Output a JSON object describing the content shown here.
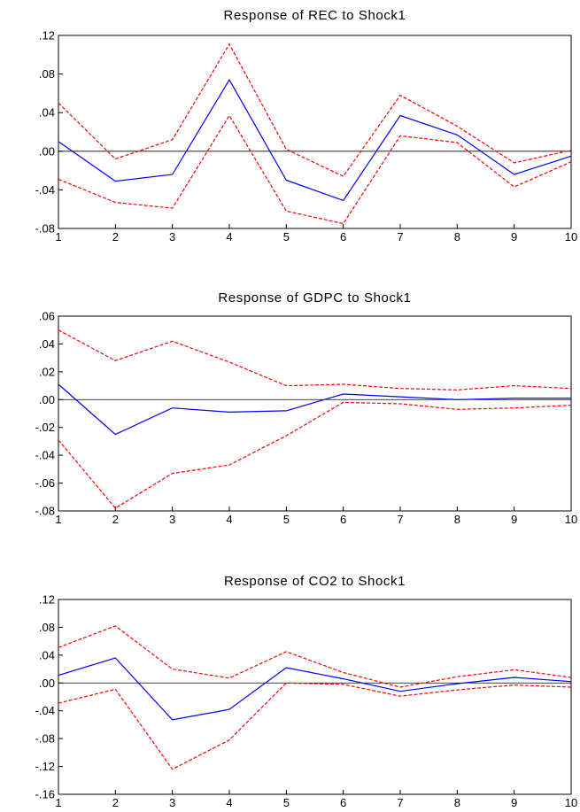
{
  "chart_data": [
    {
      "type": "line",
      "title": "Response of REC to Shock1",
      "x": [
        1,
        2,
        3,
        4,
        5,
        6,
        7,
        8,
        9,
        10
      ],
      "xlim": [
        1,
        10
      ],
      "ylim": [
        -0.08,
        0.12
      ],
      "yticks": [
        -0.08,
        -0.04,
        0.0,
        0.04,
        0.08,
        0.12
      ],
      "ytick_labels": [
        "-.08",
        "-.04",
        ".00",
        ".04",
        ".08",
        ".12"
      ],
      "xtick_labels": [
        "1",
        "2",
        "3",
        "4",
        "5",
        "6",
        "7",
        "8",
        "9",
        "10"
      ],
      "zero_line": true,
      "grid": false,
      "series": [
        {
          "role": "response",
          "color": "#0000ff",
          "style": "solid",
          "values": [
            0.01,
            -0.031,
            -0.024,
            0.074,
            -0.03,
            -0.051,
            0.037,
            0.017,
            -0.024,
            -0.005
          ]
        },
        {
          "role": "upper_band",
          "color": "#ff0000",
          "style": "dashed",
          "values": [
            0.05,
            -0.008,
            0.012,
            0.111,
            0.002,
            -0.026,
            0.058,
            0.026,
            -0.012,
            0.001
          ]
        },
        {
          "role": "lower_band",
          "color": "#ff0000",
          "style": "dashed",
          "values": [
            -0.029,
            -0.053,
            -0.059,
            0.037,
            -0.062,
            -0.075,
            0.016,
            0.009,
            -0.037,
            -0.011
          ]
        }
      ]
    },
    {
      "type": "line",
      "title": "Response of GDPC to Shock1",
      "x": [
        1,
        2,
        3,
        4,
        5,
        6,
        7,
        8,
        9,
        10
      ],
      "xlim": [
        1,
        10
      ],
      "ylim": [
        -0.08,
        0.06
      ],
      "yticks": [
        -0.08,
        -0.06,
        -0.04,
        -0.02,
        0.0,
        0.02,
        0.04,
        0.06
      ],
      "ytick_labels": [
        "-.08",
        "-.06",
        "-.04",
        "-.02",
        ".00",
        ".02",
        ".04",
        ".06"
      ],
      "xtick_labels": [
        "1",
        "2",
        "3",
        "4",
        "5",
        "6",
        "7",
        "8",
        "9",
        "10"
      ],
      "zero_line": true,
      "grid": false,
      "series": [
        {
          "role": "response",
          "color": "#0000ff",
          "style": "solid",
          "values": [
            0.011,
            -0.025,
            -0.006,
            -0.009,
            -0.008,
            0.004,
            0.002,
            0.0,
            0.001,
            0.001
          ]
        },
        {
          "role": "upper_band",
          "color": "#ff0000",
          "style": "dashed",
          "values": [
            0.05,
            0.028,
            0.042,
            0.027,
            0.01,
            0.011,
            0.008,
            0.007,
            0.01,
            0.008
          ]
        },
        {
          "role": "lower_band",
          "color": "#ff0000",
          "style": "dashed",
          "values": [
            -0.029,
            -0.078,
            -0.053,
            -0.047,
            -0.026,
            -0.002,
            -0.003,
            -0.007,
            -0.006,
            -0.004
          ]
        }
      ]
    },
    {
      "type": "line",
      "title": "Response of CO2 to Shock1",
      "x": [
        1,
        2,
        3,
        4,
        5,
        6,
        7,
        8,
        9,
        10
      ],
      "xlim": [
        1,
        10
      ],
      "ylim": [
        -0.16,
        0.12
      ],
      "yticks": [
        -0.16,
        -0.12,
        -0.08,
        -0.04,
        0.0,
        0.04,
        0.08,
        0.12
      ],
      "ytick_labels": [
        "-.16",
        "-.12",
        "-.08",
        "-.04",
        ".00",
        ".04",
        ".08",
        ".12"
      ],
      "xtick_labels": [
        "1",
        "2",
        "3",
        "4",
        "5",
        "6",
        "7",
        "8",
        "9",
        "10"
      ],
      "zero_line": true,
      "grid": false,
      "series": [
        {
          "role": "response",
          "color": "#0000ff",
          "style": "solid",
          "values": [
            0.011,
            0.036,
            -0.053,
            -0.038,
            0.022,
            0.006,
            -0.012,
            -0.001,
            0.008,
            0.002
          ]
        },
        {
          "role": "upper_band",
          "color": "#ff0000",
          "style": "dashed",
          "values": [
            0.051,
            0.082,
            0.02,
            0.007,
            0.045,
            0.015,
            -0.006,
            0.009,
            0.019,
            0.008
          ]
        },
        {
          "role": "lower_band",
          "color": "#ff0000",
          "style": "dashed",
          "values": [
            -0.029,
            -0.009,
            -0.124,
            -0.082,
            0.0,
            -0.002,
            -0.019,
            -0.01,
            -0.003,
            -0.006
          ]
        }
      ]
    }
  ]
}
